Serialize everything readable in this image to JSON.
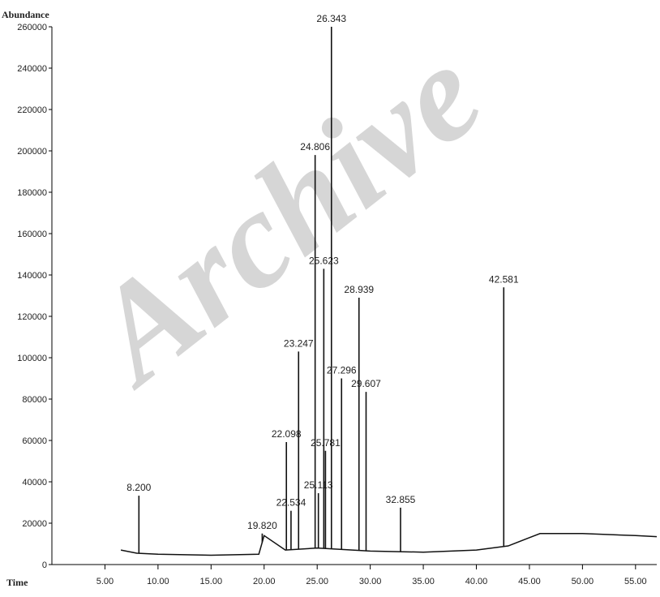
{
  "chart_data": {
    "type": "chromatogram",
    "y_label": "Abundance",
    "x_label": "Time",
    "watermark": "Archive",
    "xlim": [
      0,
      57
    ],
    "ylim": [
      0,
      260000
    ],
    "xticks": [
      {
        "value": 5,
        "label": "5.00"
      },
      {
        "value": 10,
        "label": "10.00"
      },
      {
        "value": 15,
        "label": "15.00"
      },
      {
        "value": 20,
        "label": "20.00"
      },
      {
        "value": 25,
        "label": "25.00"
      },
      {
        "value": 30,
        "label": "30.00"
      },
      {
        "value": 35,
        "label": "35.00"
      },
      {
        "value": 40,
        "label": "40.00"
      },
      {
        "value": 45,
        "label": "45.00"
      },
      {
        "value": 50,
        "label": "50.00"
      },
      {
        "value": 55,
        "label": "55.00"
      }
    ],
    "yticks": [
      0,
      20000,
      40000,
      60000,
      80000,
      100000,
      120000,
      140000,
      160000,
      180000,
      200000,
      220000,
      240000,
      260000
    ],
    "color": "#111111",
    "baseline": {
      "x": [
        6.5,
        8,
        10,
        15,
        19.5,
        20,
        22,
        25,
        30,
        35,
        40,
        43,
        45,
        46,
        50,
        55,
        57
      ],
      "values": [
        7000,
        5500,
        5000,
        4500,
        5000,
        14000,
        7000,
        8000,
        6500,
        6000,
        7000,
        9000,
        13000,
        15000,
        15000,
        14000,
        13500
      ]
    },
    "peaks": {
      "x": [
        8.2,
        19.82,
        22.098,
        22.534,
        23.247,
        24.806,
        25.113,
        25.623,
        25.781,
        26.343,
        27.296,
        28.939,
        29.607,
        32.855,
        42.581
      ],
      "x_labels": [
        "8.200",
        "19.820",
        "22.098",
        "22.534",
        "23.247",
        "24.806",
        "25.113",
        "25.623",
        "25.781",
        "26.343",
        "27.296",
        "28.939",
        "29.607",
        "32.855",
        "42.581"
      ],
      "values": [
        33300,
        15000,
        59200,
        26000,
        103000,
        198000,
        34500,
        143000,
        55000,
        260000,
        90000,
        129000,
        83500,
        27500,
        134000
      ]
    }
  }
}
